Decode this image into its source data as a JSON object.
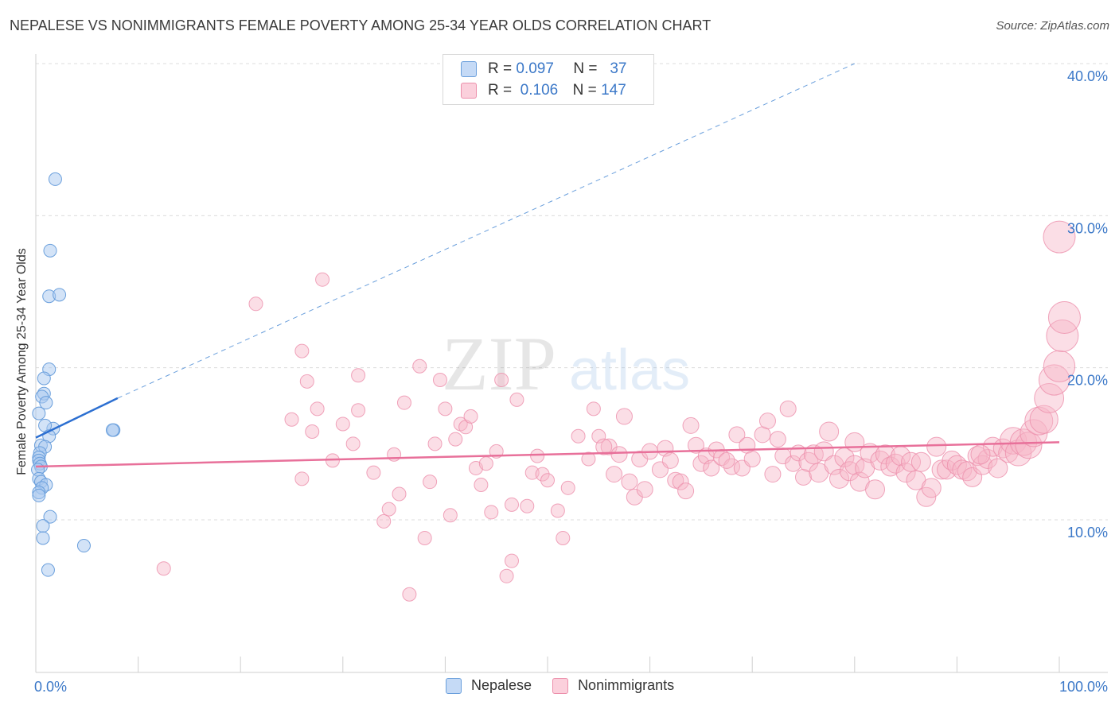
{
  "title": "NEPALESE VS NONIMMIGRANTS FEMALE POVERTY AMONG 25-34 YEAR OLDS CORRELATION CHART",
  "source": "Source: ZipAtlas.com",
  "watermark": {
    "zip": "ZIP",
    "atlas": "atlas"
  },
  "legend_top": {
    "rows": [
      {
        "r_label": "R =",
        "r_value": "0.097",
        "n_label": "N =",
        "n_value": "37",
        "color": "#a8c8f0"
      },
      {
        "r_label": "R =",
        "r_value": "0.106",
        "n_label": "N =",
        "n_value": "147",
        "color": "#f7b6c8"
      }
    ]
  },
  "legend_bottom": {
    "items": [
      "Nepalese",
      "Nonimmigrants"
    ]
  },
  "colors": {
    "blue_fill": "#a8c8f0",
    "blue_stroke": "#6a9fdc",
    "blue_line": "#2c6fd1",
    "pink_fill": "#f7b6c8",
    "pink_stroke": "#ec8fab",
    "pink_line": "#e8709a",
    "tick_text": "#3b78c8",
    "grid": "#dcdcdc"
  },
  "chart_data": {
    "type": "scatter",
    "title": "NEPALESE VS NONIMMIGRANTS FEMALE POVERTY AMONG 25-34 YEAR OLDS CORRELATION CHART",
    "xlabel": "",
    "ylabel": "Female Poverty Among 25-34 Year Olds",
    "xlim": [
      0,
      100
    ],
    "ylim": [
      0,
      42
    ],
    "x_tick_labels": [
      "0.0%",
      "100.0%"
    ],
    "y_ticks": [
      10,
      20,
      30,
      40
    ],
    "y_tick_labels": [
      "10.0%",
      "20.0%",
      "30.0%",
      "40.0%"
    ],
    "grid": true,
    "series": [
      {
        "name": "Nepalese",
        "points": [
          [
            1.9,
            32.4
          ],
          [
            1.4,
            27.7
          ],
          [
            1.3,
            24.7
          ],
          [
            2.3,
            24.8
          ],
          [
            1.3,
            19.9
          ],
          [
            0.8,
            19.3
          ],
          [
            0.8,
            18.3
          ],
          [
            0.6,
            18.1
          ],
          [
            1.0,
            17.7
          ],
          [
            0.3,
            17.0
          ],
          [
            1.7,
            16.0
          ],
          [
            0.9,
            16.2
          ],
          [
            1.3,
            15.5
          ],
          [
            0.5,
            14.9
          ],
          [
            0.9,
            14.8
          ],
          [
            0.4,
            14.4
          ],
          [
            0.3,
            14.1
          ],
          [
            0.3,
            13.9
          ],
          [
            0.4,
            13.7
          ],
          [
            0.5,
            13.5
          ],
          [
            0.2,
            13.3
          ],
          [
            0.3,
            12.7
          ],
          [
            0.5,
            12.5
          ],
          [
            1.0,
            12.3
          ],
          [
            0.6,
            12.1
          ],
          [
            0.3,
            11.8
          ],
          [
            0.3,
            11.6
          ],
          [
            1.4,
            10.2
          ],
          [
            0.7,
            9.6
          ],
          [
            0.7,
            8.8
          ],
          [
            4.7,
            8.3
          ],
          [
            1.2,
            6.7
          ],
          [
            7.6,
            15.9
          ],
          [
            7.5,
            15.9
          ]
        ],
        "trend": {
          "x": [
            0,
            8
          ],
          "y": [
            15.4,
            18.0
          ],
          "extended_to_x": 80,
          "extended_to_y": 40.0
        }
      },
      {
        "name": "Nonimmigrants",
        "points": [
          [
            12.5,
            6.8
          ],
          [
            21.5,
            24.2
          ],
          [
            28.0,
            25.8
          ],
          [
            26.0,
            12.7
          ],
          [
            25.0,
            16.6
          ],
          [
            26.5,
            19.1
          ],
          [
            26.0,
            21.1
          ],
          [
            27.0,
            15.8
          ],
          [
            27.5,
            17.3
          ],
          [
            29.0,
            13.9
          ],
          [
            30.0,
            16.3
          ],
          [
            31.0,
            15.0
          ],
          [
            31.5,
            19.5
          ],
          [
            31.5,
            17.2
          ],
          [
            33.0,
            13.1
          ],
          [
            34.0,
            9.9
          ],
          [
            34.5,
            10.7
          ],
          [
            35.0,
            14.3
          ],
          [
            35.5,
            11.7
          ],
          [
            36.0,
            17.7
          ],
          [
            36.5,
            5.1
          ],
          [
            37.5,
            20.1
          ],
          [
            38.0,
            8.8
          ],
          [
            38.5,
            12.5
          ],
          [
            39.0,
            15.0
          ],
          [
            39.5,
            19.2
          ],
          [
            40.0,
            17.3
          ],
          [
            40.5,
            10.3
          ],
          [
            41.0,
            15.3
          ],
          [
            41.5,
            16.3
          ],
          [
            42.0,
            16.1
          ],
          [
            42.5,
            16.8
          ],
          [
            43.0,
            13.4
          ],
          [
            43.5,
            12.3
          ],
          [
            44.0,
            13.7
          ],
          [
            44.5,
            10.5
          ],
          [
            45.0,
            14.5
          ],
          [
            45.5,
            19.2
          ],
          [
            46.0,
            6.3
          ],
          [
            46.5,
            7.3
          ],
          [
            46.5,
            11.0
          ],
          [
            47.0,
            17.9
          ],
          [
            48.0,
            10.9
          ],
          [
            48.5,
            13.1
          ],
          [
            49.0,
            14.2
          ],
          [
            49.5,
            13.0
          ],
          [
            50.0,
            12.6
          ],
          [
            51.0,
            10.6
          ],
          [
            51.5,
            8.8
          ],
          [
            52.0,
            12.1
          ],
          [
            53.0,
            15.5
          ],
          [
            54.0,
            14.0
          ],
          [
            54.5,
            17.3
          ],
          [
            55.0,
            15.5
          ],
          [
            56.0,
            14.8
          ],
          [
            56.5,
            13.0
          ],
          [
            57.0,
            14.3
          ],
          [
            57.5,
            16.8
          ],
          [
            58.0,
            12.5
          ],
          [
            58.5,
            11.5
          ],
          [
            59.0,
            14.0
          ],
          [
            59.5,
            12.0
          ],
          [
            60.0,
            14.5
          ],
          [
            61.0,
            13.3
          ],
          [
            61.5,
            14.7
          ],
          [
            62.0,
            13.9
          ],
          [
            62.5,
            12.6
          ],
          [
            63.0,
            12.5
          ],
          [
            63.5,
            11.9
          ],
          [
            64.0,
            16.2
          ],
          [
            64.5,
            14.9
          ],
          [
            65.0,
            13.7
          ],
          [
            65.5,
            14.2
          ],
          [
            66.0,
            13.4
          ],
          [
            66.5,
            14.6
          ],
          [
            67.0,
            14.1
          ],
          [
            68.0,
            13.5
          ],
          [
            68.5,
            15.6
          ],
          [
            69.0,
            13.4
          ],
          [
            69.5,
            14.9
          ],
          [
            70.0,
            14.0
          ],
          [
            71.0,
            15.6
          ],
          [
            71.5,
            16.5
          ],
          [
            72.0,
            13.0
          ],
          [
            72.5,
            15.3
          ],
          [
            73.0,
            14.2
          ],
          [
            73.5,
            17.3
          ],
          [
            74.0,
            13.7
          ],
          [
            74.5,
            14.4
          ],
          [
            75.0,
            12.8
          ],
          [
            75.5,
            13.8
          ],
          [
            76.0,
            14.3
          ],
          [
            76.5,
            13.1
          ],
          [
            77.0,
            14.5
          ],
          [
            77.5,
            15.8
          ],
          [
            78.0,
            13.6
          ],
          [
            78.5,
            12.7
          ],
          [
            79.0,
            14.1
          ],
          [
            79.5,
            13.2
          ],
          [
            80.0,
            13.6
          ],
          [
            80.5,
            12.5
          ],
          [
            81.0,
            13.4
          ],
          [
            81.5,
            14.4
          ],
          [
            82.0,
            12.0
          ],
          [
            82.5,
            13.9
          ],
          [
            83.0,
            14.3
          ],
          [
            83.5,
            13.5
          ],
          [
            84.0,
            13.7
          ],
          [
            84.5,
            14.2
          ],
          [
            85.0,
            13.1
          ],
          [
            85.5,
            13.8
          ],
          [
            86.0,
            12.6
          ],
          [
            86.5,
            13.8
          ],
          [
            87.0,
            11.5
          ],
          [
            87.5,
            12.1
          ],
          [
            88.0,
            14.8
          ],
          [
            88.5,
            13.3
          ],
          [
            89.0,
            13.3
          ],
          [
            89.5,
            13.9
          ],
          [
            90.0,
            13.6
          ],
          [
            90.5,
            13.3
          ],
          [
            91.0,
            13.2
          ],
          [
            91.5,
            12.8
          ],
          [
            92.0,
            14.2
          ],
          [
            92.5,
            13.6
          ],
          [
            93.0,
            14.0
          ],
          [
            93.5,
            14.8
          ],
          [
            94.0,
            13.4
          ],
          [
            94.5,
            14.7
          ],
          [
            95.0,
            14.4
          ],
          [
            95.5,
            15.2
          ],
          [
            96.0,
            14.4
          ],
          [
            96.5,
            15.1
          ],
          [
            97.0,
            14.9
          ],
          [
            97.5,
            15.7
          ],
          [
            98.0,
            16.5
          ],
          [
            98.5,
            16.6
          ],
          [
            99.0,
            18.0
          ],
          [
            99.5,
            19.2
          ],
          [
            100.0,
            20.1
          ],
          [
            100.3,
            22.1
          ],
          [
            100.5,
            23.3
          ],
          [
            100.0,
            28.6
          ],
          [
            92.3,
            14.3
          ],
          [
            80.0,
            15.1
          ],
          [
            67.5,
            13.9
          ],
          [
            55.5,
            14.8
          ]
        ],
        "trend": {
          "x": [
            0,
            100
          ],
          "y": [
            13.5,
            15.1
          ]
        }
      }
    ]
  }
}
